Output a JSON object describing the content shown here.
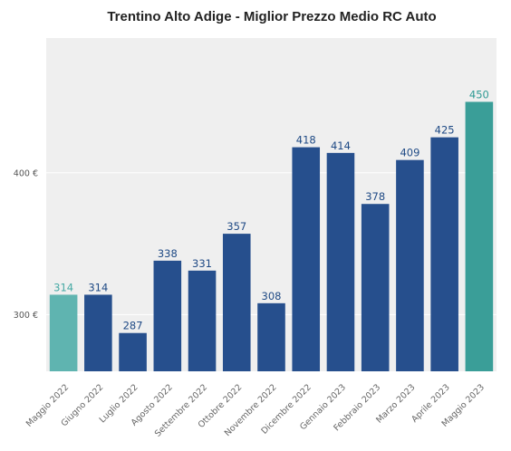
{
  "chart_data": {
    "type": "bar",
    "title": "Trentino Alto Adige - Miglior Prezzo Medio RC Auto",
    "xlabel": "",
    "ylabel": "",
    "categories": [
      "Maggio 2022",
      "Giugno 2022",
      "Luglio 2022",
      "Agosto 2022",
      "Settembre 2022",
      "Ottobre 2022",
      "Novembre 2022",
      "Dicembre 2022",
      "Gennaio 2023",
      "Febbraio 2023",
      "Marzo 2023",
      "Aprile 2023",
      "Maggio 2023"
    ],
    "values": [
      314,
      314,
      287,
      338,
      331,
      357,
      308,
      418,
      414,
      378,
      409,
      425,
      450
    ],
    "data_labels": [
      "314",
      "314",
      "287",
      "338",
      "331",
      "357",
      "308",
      "418",
      "414",
      "378",
      "409",
      "425",
      "450"
    ],
    "ylim": [
      260,
      495
    ],
    "yticks": [
      300,
      400
    ],
    "ytick_labels": [
      "300 €",
      "400 €"
    ],
    "grid": true,
    "legend": "none",
    "highlighted_indices": [
      0,
      12
    ],
    "colors": {
      "bar": "#264f8d",
      "first_bar": "#5fb4b0",
      "last_bar": "#3a9e98",
      "bar_label": "#1f4a85",
      "first_label": "#45a9a4",
      "last_label": "#2f9a94",
      "plot_background": "#efefef",
      "gridline": "#ffffff"
    }
  }
}
